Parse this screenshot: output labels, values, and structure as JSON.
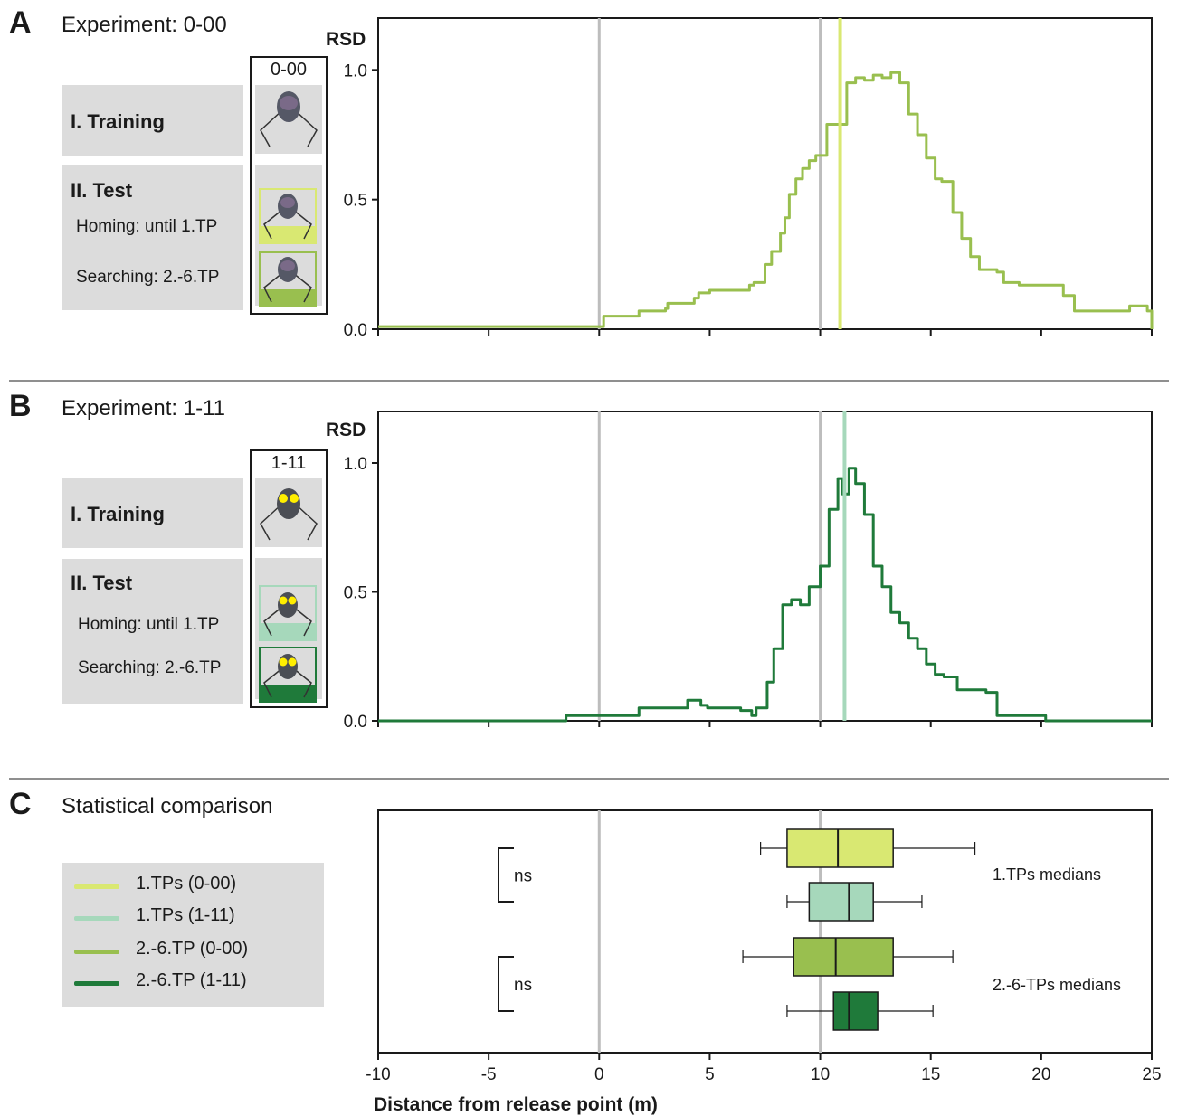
{
  "panels": {
    "a": {
      "letter": "A",
      "title": "Experiment: 0-00",
      "condition": "0-00"
    },
    "b": {
      "letter": "B",
      "title": "Experiment: 1-11",
      "condition": "1-11"
    },
    "c": {
      "letter": "C",
      "title": "Statistical comparison"
    }
  },
  "protocol": {
    "training": "I. Training",
    "test": "II. Test",
    "homing": "Homing: until 1.TP",
    "searching": "Searching: 2.-6.TP"
  },
  "legend": [
    {
      "label": "1.TPs (0-00)",
      "color": "#d9e872"
    },
    {
      "label": "1.TPs (1-11)",
      "color": "#a6d8bb"
    },
    {
      "label": "2.-6.TP (0-00)",
      "color": "#99bf4f"
    },
    {
      "label": "2.-6.TP (1-11)",
      "color": "#1f7a3a"
    }
  ],
  "colors": {
    "ref_line": "#bdbdbd",
    "light_green": "#d9e872",
    "light_teal": "#a6d8bb",
    "mid_green": "#99bf4f",
    "dark_green": "#1f7a3a"
  },
  "chart_data": [
    {
      "id": "A",
      "type": "line",
      "ylabel": "RSD",
      "xlim": [
        -10,
        25
      ],
      "ylim": [
        0,
        1.2
      ],
      "yticks": [
        "0.0",
        "0.5",
        "1.0"
      ],
      "ytick_values": [
        0,
        0.5,
        1.0
      ],
      "ref_lines": [
        0,
        10
      ],
      "median_line": 10.9,
      "series": [
        {
          "x": [
            -10,
            0,
            0.2,
            1.5,
            1.8,
            3,
            3.1,
            4.3,
            4.5,
            5,
            6,
            6.8,
            7,
            7.5,
            7.8,
            8.2,
            8.4,
            8.6,
            8.9,
            9.2,
            9.5,
            9.8,
            10.3,
            10.9,
            11.2,
            11.6,
            12,
            12.4,
            12.8,
            13.2,
            13.6,
            14,
            14.4,
            14.8,
            15.2,
            15.5,
            16,
            16.4,
            16.8,
            17.2,
            18,
            18.3,
            19,
            21,
            21.5,
            23.5,
            24,
            24.8,
            25
          ],
          "y": [
            0.01,
            0.01,
            0.05,
            0.05,
            0.07,
            0.08,
            0.1,
            0.12,
            0.14,
            0.15,
            0.15,
            0.17,
            0.18,
            0.25,
            0.3,
            0.37,
            0.43,
            0.52,
            0.58,
            0.62,
            0.65,
            0.67,
            0.79,
            0.79,
            0.95,
            0.97,
            0.96,
            0.98,
            0.97,
            0.99,
            0.95,
            0.83,
            0.75,
            0.66,
            0.58,
            0.57,
            0.45,
            0.35,
            0.28,
            0.23,
            0.22,
            0.18,
            0.17,
            0.13,
            0.07,
            0.07,
            0.09,
            0.07,
            0.0
          ]
        }
      ]
    },
    {
      "id": "B",
      "type": "line",
      "ylabel": "RSD",
      "xlim": [
        -10,
        25
      ],
      "ylim": [
        0,
        1.2
      ],
      "yticks": [
        "0.0",
        "0.5",
        "1.0"
      ],
      "ytick_values": [
        0,
        0.5,
        1.0
      ],
      "ref_lines": [
        0,
        10
      ],
      "median_line": 11.1,
      "series": [
        {
          "x": [
            -10,
            -2,
            -1.5,
            1.5,
            1.8,
            3.6,
            4,
            4.6,
            4.9,
            5.5,
            6.4,
            6.9,
            7.1,
            7.6,
            7.9,
            8.3,
            8.7,
            9.1,
            9.5,
            10.0,
            10.4,
            10.8,
            11.0,
            11.3,
            11.6,
            12.0,
            12.4,
            12.8,
            13.2,
            13.6,
            14,
            14.4,
            14.8,
            15.2,
            15.6,
            16.2,
            17,
            17.5,
            18,
            20,
            20.2,
            25
          ],
          "y": [
            0.0,
            0.0,
            0.02,
            0.02,
            0.05,
            0.05,
            0.08,
            0.06,
            0.05,
            0.05,
            0.04,
            0.02,
            0.05,
            0.15,
            0.28,
            0.45,
            0.47,
            0.45,
            0.52,
            0.6,
            0.82,
            0.94,
            0.88,
            0.98,
            0.92,
            0.8,
            0.6,
            0.52,
            0.42,
            0.38,
            0.32,
            0.28,
            0.22,
            0.18,
            0.17,
            0.12,
            0.12,
            0.11,
            0.02,
            0.02,
            0.0,
            0.0
          ]
        }
      ]
    },
    {
      "id": "C",
      "type": "boxplot",
      "xlabel": "Distance from release point (m)",
      "xlim": [
        -10,
        25
      ],
      "xticks": [
        "-10",
        "-5",
        "0",
        "5",
        "10",
        "15",
        "20",
        "25"
      ],
      "xtick_values": [
        -10,
        -5,
        0,
        5,
        10,
        15,
        20,
        25
      ],
      "ref_lines": [
        0,
        10
      ],
      "group_labels": [
        "1.TPs medians",
        "2.-6-TPs medians"
      ],
      "significance": [
        "ns",
        "ns"
      ],
      "boxes": [
        {
          "name": "1.TPs (0-00)",
          "whisker_low": 7.3,
          "q1": 8.5,
          "median": 10.8,
          "q3": 13.3,
          "whisker_high": 17.0
        },
        {
          "name": "1.TPs (1-11)",
          "whisker_low": 8.5,
          "q1": 9.5,
          "median": 11.3,
          "q3": 12.4,
          "whisker_high": 14.6
        },
        {
          "name": "2.-6.TP (0-00)",
          "whisker_low": 6.5,
          "q1": 8.8,
          "median": 10.7,
          "q3": 13.3,
          "whisker_high": 16.0
        },
        {
          "name": "2.-6.TP (1-11)",
          "whisker_low": 8.5,
          "q1": 10.6,
          "median": 11.3,
          "q3": 12.6,
          "whisker_high": 15.1
        }
      ]
    }
  ]
}
